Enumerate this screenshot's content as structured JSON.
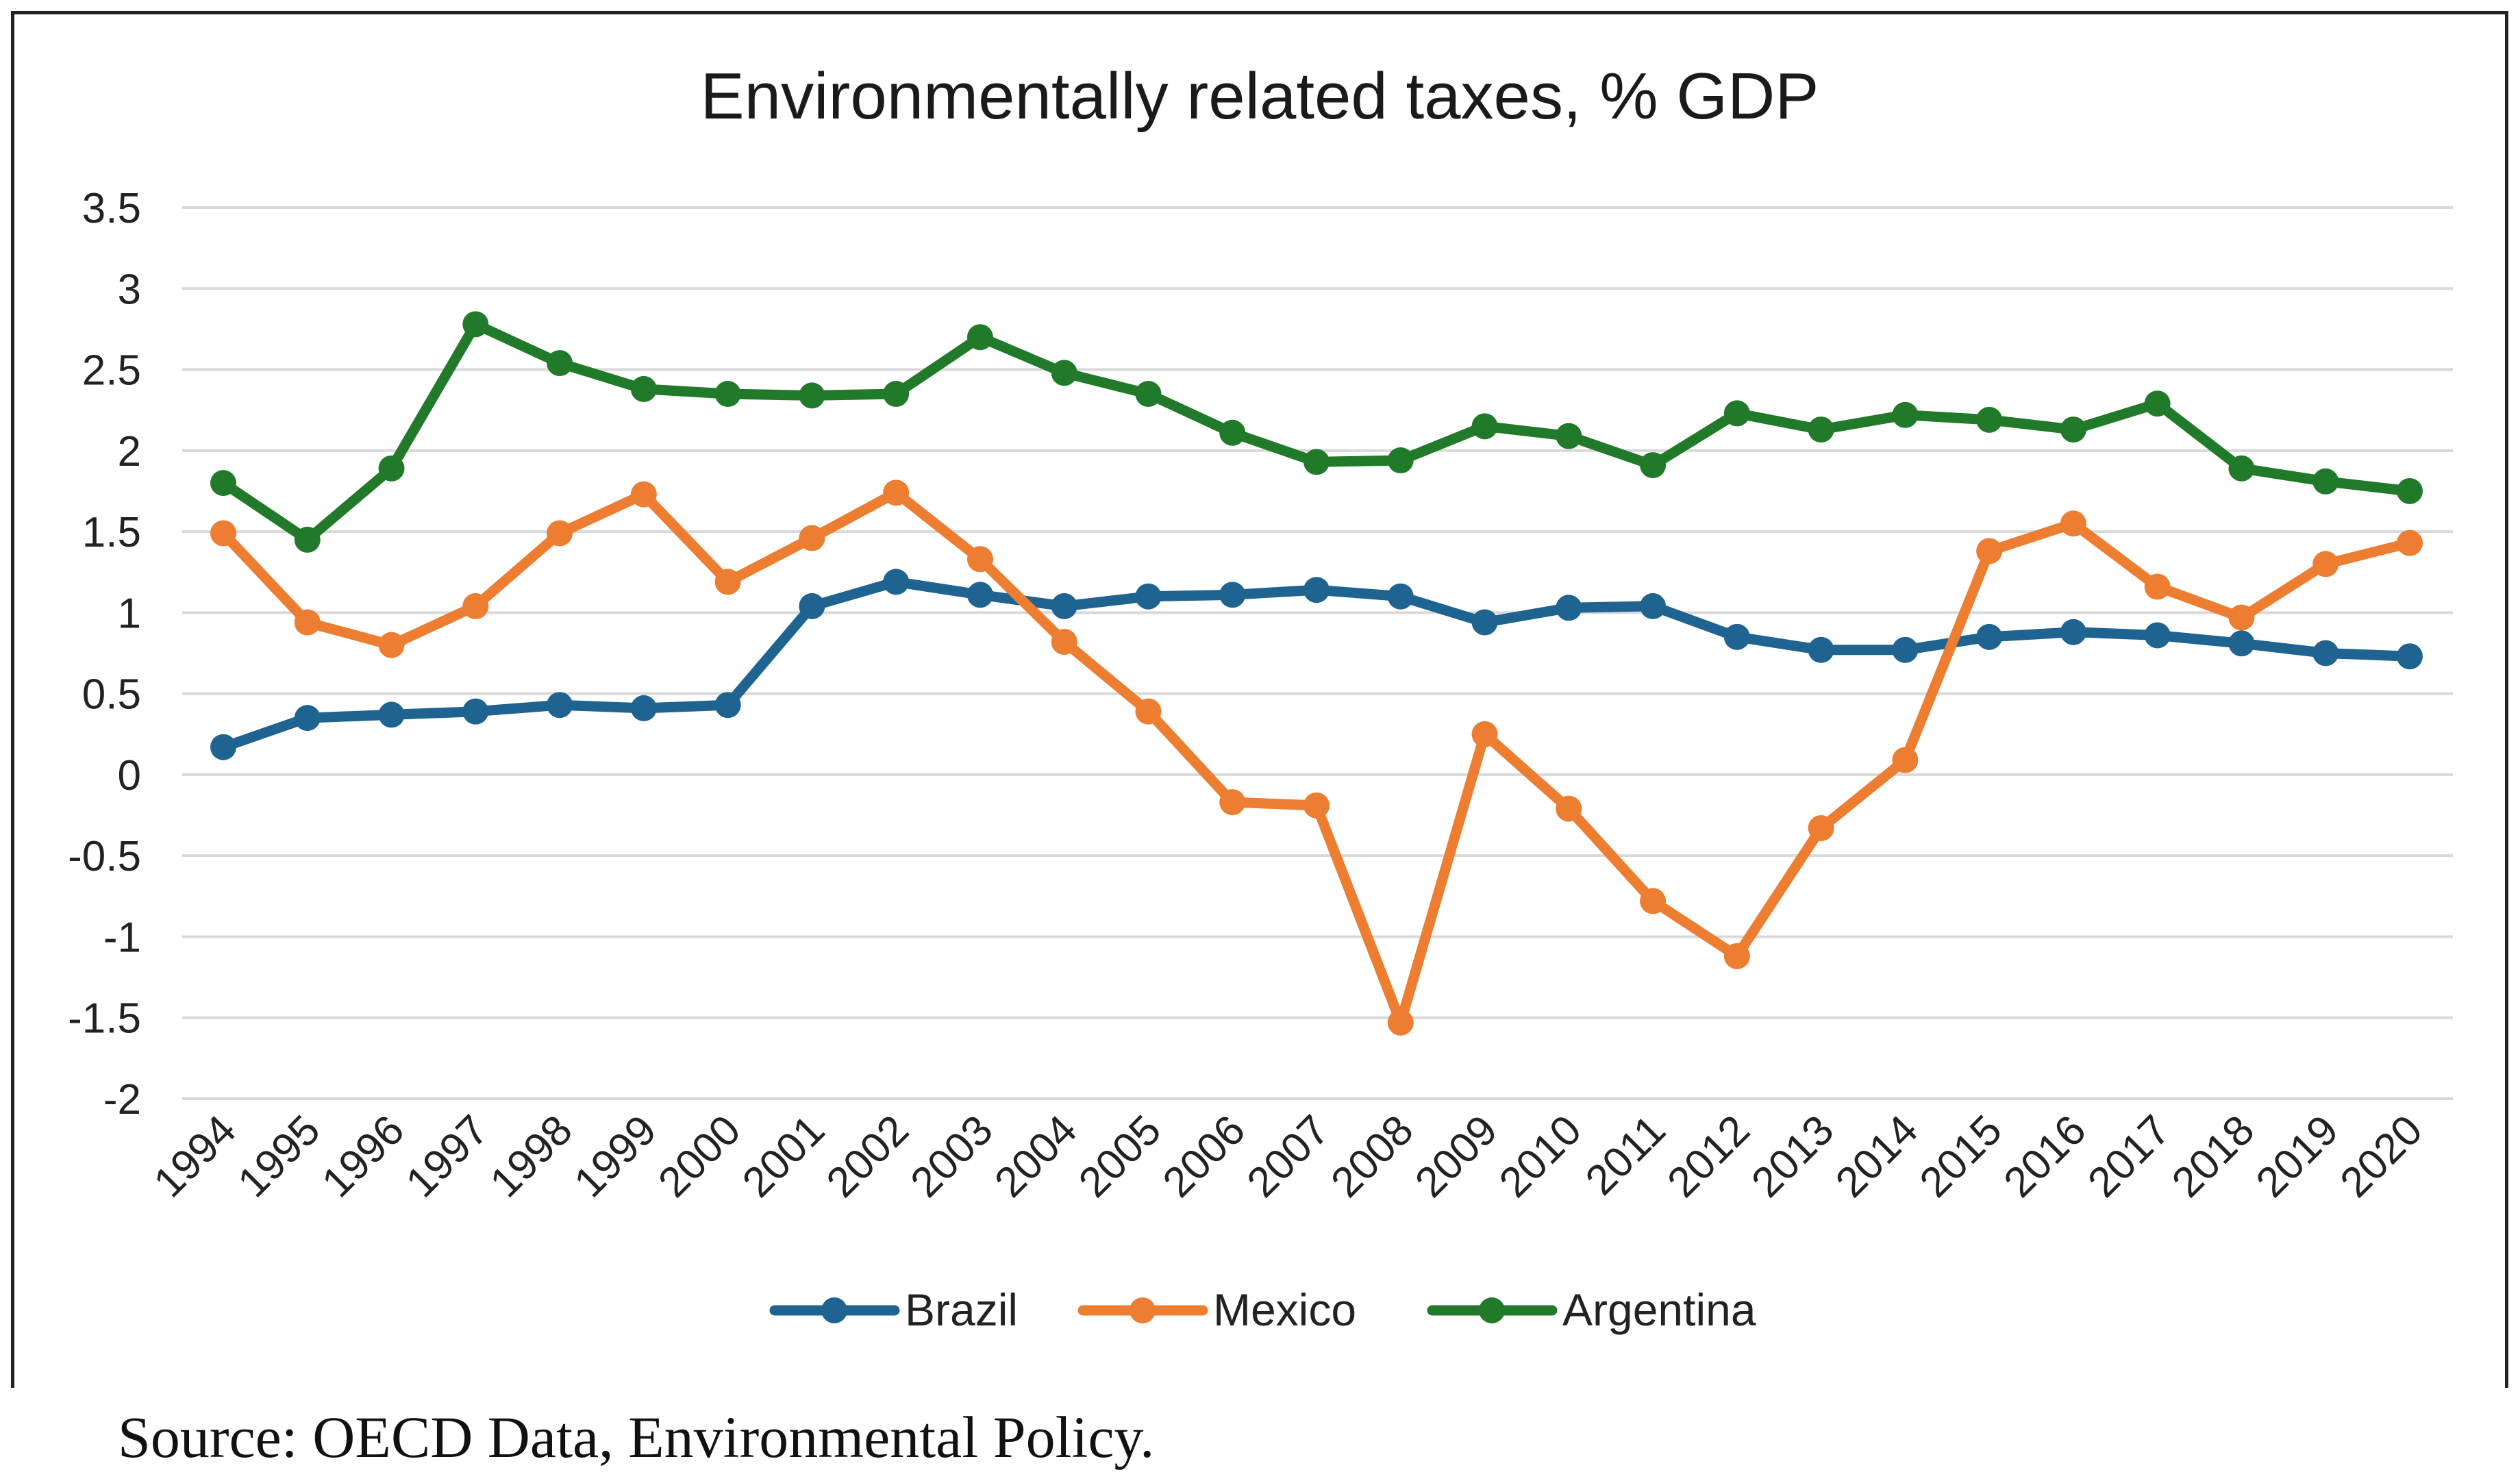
{
  "chart_data": {
    "type": "line",
    "title": "Environmentally related taxes, % GDP",
    "xlabel": "",
    "ylabel": "",
    "ylim": [
      -2,
      3.5
    ],
    "yticks": [
      3.5,
      3,
      2.5,
      2,
      1.5,
      1,
      0.5,
      0,
      -0.5,
      -1,
      -1.5,
      -2
    ],
    "ytick_labels": [
      "3.5",
      "3",
      "2.5",
      "2",
      "1.5",
      "1",
      "0.5",
      "0",
      "-0.5",
      "-1",
      "-1.5",
      "-2"
    ],
    "grid": true,
    "legend_position": "bottom",
    "categories": [
      "1994",
      "1995",
      "1996",
      "1997",
      "1998",
      "1999",
      "2000",
      "2001",
      "2002",
      "2003",
      "2004",
      "2005",
      "2006",
      "2007",
      "2008",
      "2009",
      "2010",
      "2011",
      "2012",
      "2013",
      "2014",
      "2015",
      "2016",
      "2017",
      "2018",
      "2019",
      "2020"
    ],
    "series": [
      {
        "name": "Brazil",
        "color": "#1f6391",
        "values": [
          0.17,
          0.35,
          0.37,
          0.39,
          0.43,
          0.41,
          0.43,
          1.04,
          1.19,
          1.11,
          1.04,
          1.1,
          1.11,
          1.14,
          1.1,
          0.94,
          1.03,
          1.04,
          0.85,
          0.77,
          0.77,
          0.85,
          0.88,
          0.86,
          0.81,
          0.75,
          0.73
        ]
      },
      {
        "name": "Mexico",
        "color": "#ed7d31",
        "values": [
          1.49,
          0.94,
          0.8,
          1.04,
          1.49,
          1.73,
          1.19,
          1.46,
          1.74,
          1.33,
          0.82,
          0.39,
          -0.17,
          -0.19,
          -1.53,
          0.25,
          -0.21,
          -0.78,
          -1.12,
          -0.33,
          0.09,
          1.38,
          1.55,
          1.16,
          0.97,
          1.3,
          1.43
        ]
      },
      {
        "name": "Argentina",
        "color": "#217a2a",
        "values": [
          1.8,
          1.45,
          1.89,
          2.78,
          2.54,
          2.38,
          2.35,
          2.34,
          2.35,
          2.7,
          2.48,
          2.35,
          2.11,
          1.93,
          1.94,
          2.15,
          2.09,
          1.91,
          2.23,
          2.13,
          2.22,
          2.19,
          2.13,
          2.29,
          1.89,
          1.81,
          1.75
        ]
      }
    ]
  },
  "source_note": "Source: OECD Data, Environmental Policy."
}
